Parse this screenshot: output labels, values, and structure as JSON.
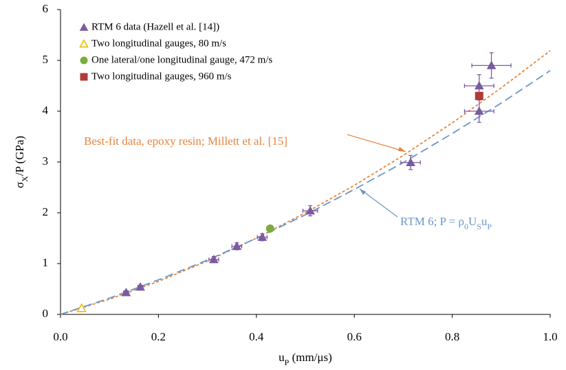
{
  "chart_data": {
    "type": "scatter",
    "x_label": [
      "u",
      "P",
      " (mm/μs)"
    ],
    "y_label": [
      "σ",
      "X",
      "/P (GPa)"
    ],
    "xlim": [
      0,
      1
    ],
    "ylim": [
      0,
      6
    ],
    "xticks": [
      {
        "value": 0,
        "label": "0.0"
      },
      {
        "value": 0.2,
        "label": "0.2"
      },
      {
        "value": 0.4,
        "label": "0.4"
      },
      {
        "value": 0.6,
        "label": "0.6"
      },
      {
        "value": 0.8,
        "label": "0.8"
      },
      {
        "value": 1,
        "label": "1.0"
      }
    ],
    "yticks": [
      0,
      1,
      2,
      3,
      4,
      5,
      6
    ],
    "series": [
      {
        "name": "RTM 6 data (Hazell et al. [14])",
        "color": "#7b5aa0",
        "marker": "triangle",
        "x": [
          0.134,
          0.163,
          0.313,
          0.36,
          0.412,
          0.51,
          0.715,
          0.855,
          0.855,
          0.88
        ],
        "values": [
          0.43,
          0.54,
          1.08,
          1.34,
          1.52,
          2.04,
          2.99,
          4.0,
          4.5,
          4.9
        ],
        "xerr": [
          0.005,
          0.005,
          0.01,
          0.01,
          0.01,
          0.015,
          0.02,
          0.03,
          0.03,
          0.04
        ],
        "yerr": [
          0.03,
          0.03,
          0.06,
          0.07,
          0.07,
          0.1,
          0.14,
          0.22,
          0.22,
          0.25
        ]
      },
      {
        "name": "Two longitudinal gauges, 80 m/s",
        "color": "#f2b800",
        "marker": "open-triangle",
        "x": [
          0.043
        ],
        "values": [
          0.12
        ]
      },
      {
        "name": "One lateral/one longitudinal gauge, 472 m/s",
        "color": "#7aac3e",
        "marker": "circle",
        "x": [
          0.428
        ],
        "values": [
          1.69
        ]
      },
      {
        "name": "Two longitudinal gauges, 960 m/s",
        "color": "#b03a38",
        "marker": "square",
        "x": [
          0.855
        ],
        "values": [
          4.3
        ]
      },
      {
        "annotation": [
          "Best-fit data, epoxy resin; Millett et al. [15]"
        ],
        "color": "#e8833a",
        "marker": "short-dash",
        "x": [
          0,
          0.1,
          0.2,
          0.3,
          0.4,
          0.5,
          0.6,
          0.7,
          0.8,
          0.9,
          1.0
        ],
        "values": [
          0,
          0.3,
          0.65,
          1.05,
          1.5,
          2.0,
          2.54,
          3.13,
          3.77,
          4.46,
          5.19
        ]
      },
      {
        "annotation": [
          "RTM 6; P = ρ",
          "0",
          "U",
          "S",
          "u",
          "P"
        ],
        "color": "#6a95c8",
        "marker": "long-dash",
        "x": [
          0,
          0.1,
          0.2,
          0.3,
          0.4,
          0.5,
          0.6,
          0.7,
          0.8,
          0.9,
          1.0
        ],
        "values": [
          0,
          0.32,
          0.68,
          1.07,
          1.5,
          1.96,
          2.46,
          2.99,
          3.56,
          4.16,
          4.8
        ]
      }
    ]
  }
}
